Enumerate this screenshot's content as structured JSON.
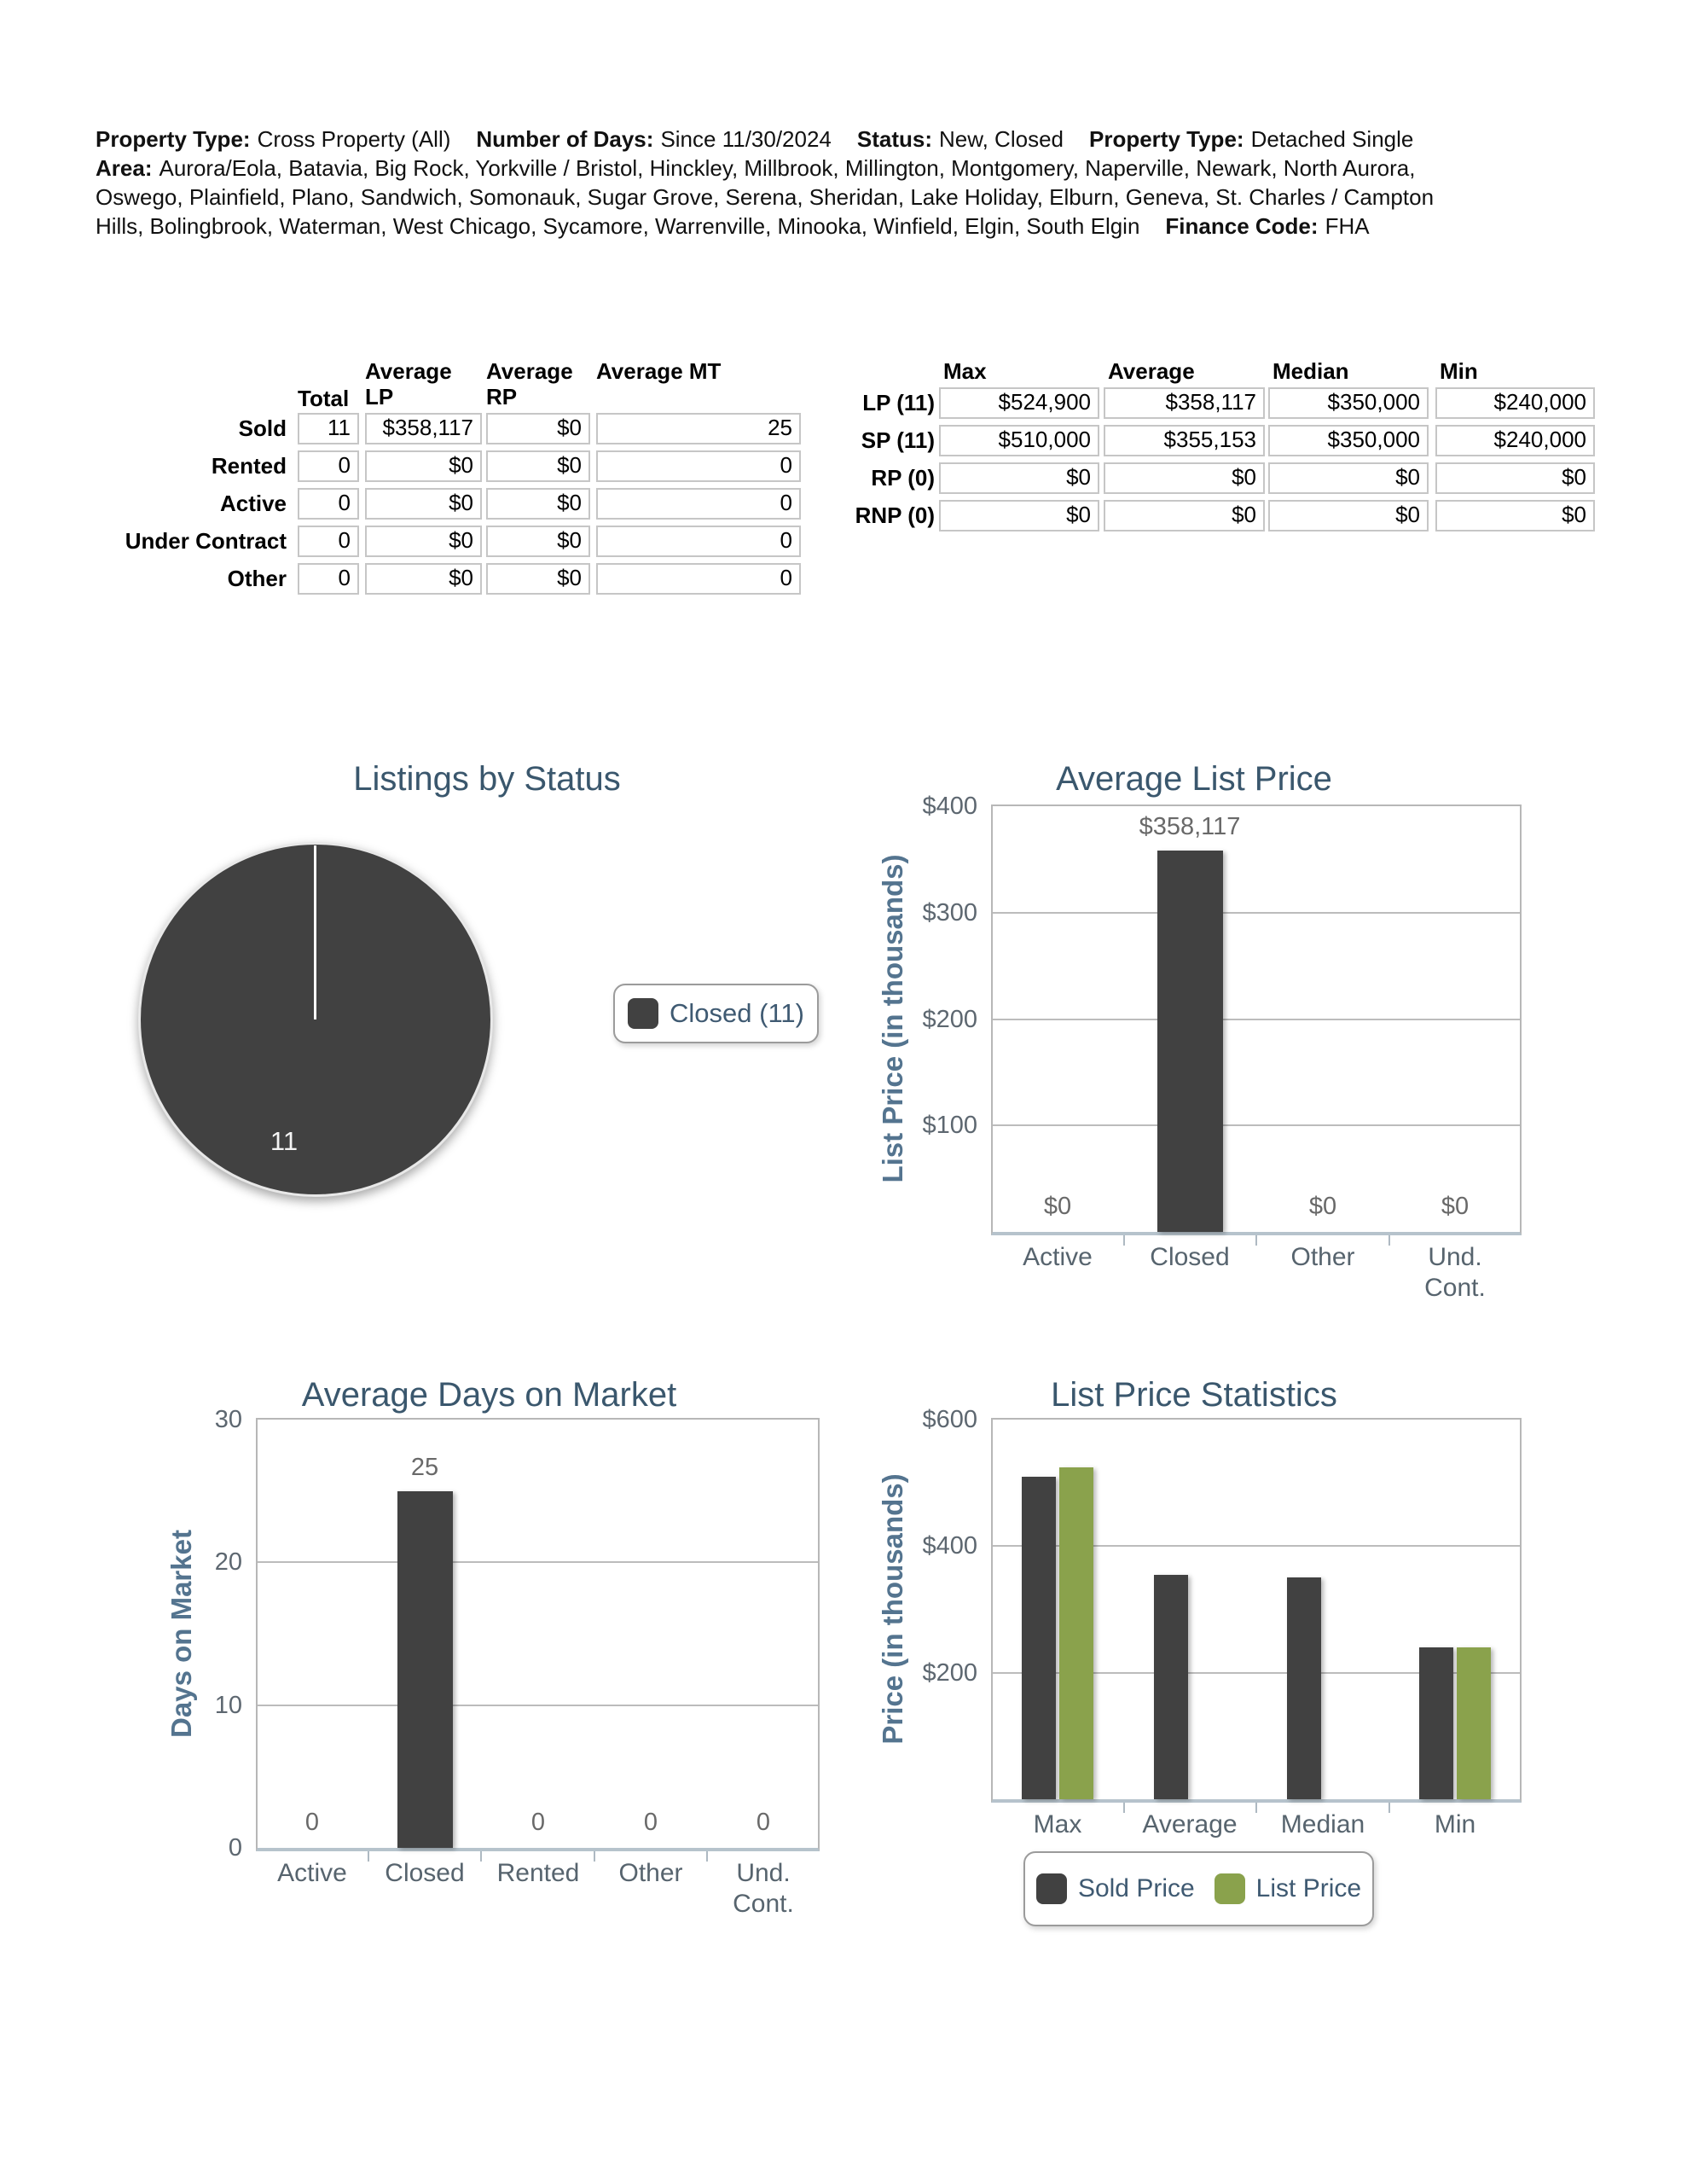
{
  "colors": {
    "charcoal": "#414141",
    "green": "#8aa24c",
    "title_slate": "#3a576d",
    "axis_label_blue": "#54748f",
    "cell_border": "#c6c6c6",
    "baseline_steel": "#b6c3cc"
  },
  "header": {
    "items_line1": [
      {
        "label": "Property Type:",
        "value": "Cross Property (All)"
      },
      {
        "label": "Number of Days:",
        "value": "Since 11/30/2024"
      },
      {
        "label": "Status:",
        "value": "New, Closed"
      },
      {
        "label": "Property Type:",
        "value": "Detached Single"
      }
    ],
    "area_label": "Area:",
    "area_line1": "Aurora/Eola, Batavia, Big Rock, Yorkville / Bristol, Hinckley, Millbrook, Millington, Montgomery, Naperville, Newark, North Aurora,",
    "area_line2": "Oswego, Plainfield, Plano, Sandwich, Somonauk, Sugar Grove, Serena, Sheridan, Lake Holiday, Elburn, Geneva, St. Charles / Campton",
    "area_line3": "Hills, Bolingbrook, Waterman, West Chicago, Sycamore, Warrenville, Minooka, Winfield, Elgin, South Elgin",
    "finance_label": "Finance Code:",
    "finance_value": "FHA"
  },
  "status_table": {
    "col_headers": [
      "Total",
      "Average LP",
      "Average RP",
      "Average MT"
    ],
    "rows": [
      {
        "label": "Sold",
        "cells": [
          "11",
          "$358,117",
          "$0",
          "25"
        ]
      },
      {
        "label": "Rented",
        "cells": [
          "0",
          "$0",
          "$0",
          "0"
        ]
      },
      {
        "label": "Active",
        "cells": [
          "0",
          "$0",
          "$0",
          "0"
        ]
      },
      {
        "label": "Under Contract",
        "cells": [
          "0",
          "$0",
          "$0",
          "0"
        ]
      },
      {
        "label": "Other",
        "cells": [
          "0",
          "$0",
          "$0",
          "0"
        ]
      }
    ]
  },
  "price_table": {
    "col_headers": [
      "Max",
      "Average",
      "Median",
      "Min"
    ],
    "rows": [
      {
        "label": "LP (11)",
        "cells": [
          "$524,900",
          "$358,117",
          "$350,000",
          "$240,000"
        ]
      },
      {
        "label": "SP (11)",
        "cells": [
          "$510,000",
          "$355,153",
          "$350,000",
          "$240,000"
        ]
      },
      {
        "label": "RP (0)",
        "cells": [
          "$0",
          "$0",
          "$0",
          "$0"
        ]
      },
      {
        "label": "RNP (0)",
        "cells": [
          "$0",
          "$0",
          "$0",
          "$0"
        ]
      }
    ]
  },
  "chart_data": [
    {
      "type": "pie",
      "title": "Listings by Status",
      "slices": [
        {
          "label": "Closed",
          "value": 11,
          "color": "#414141",
          "data_label": "11"
        }
      ],
      "legend": {
        "position": "right",
        "entries": [
          {
            "label": "Closed (11)",
            "color": "#414141"
          }
        ]
      }
    },
    {
      "type": "bar",
      "title": "Average List Price",
      "xlabel": "",
      "ylabel": "List Price (in thousands)",
      "categories": [
        "Active",
        "Closed",
        "Other",
        "Und. Cont."
      ],
      "values": [
        0,
        358.117,
        0,
        0
      ],
      "value_labels": [
        "$0",
        "$358,117",
        "$0",
        "$0"
      ],
      "ylim": [
        0,
        400
      ],
      "yticks": [
        {
          "value": 400,
          "label": "$400"
        },
        {
          "value": 300,
          "label": "$300"
        },
        {
          "value": 200,
          "label": "$200"
        },
        {
          "value": 100,
          "label": "$100"
        }
      ],
      "grid": true,
      "bar_color": "#414141"
    },
    {
      "type": "bar",
      "title": "Average Days on Market",
      "xlabel": "",
      "ylabel": "Days on Market",
      "categories": [
        "Active",
        "Closed",
        "Rented",
        "Other",
        "Und. Cont."
      ],
      "values": [
        0,
        25,
        0,
        0,
        0
      ],
      "value_labels": [
        "0",
        "25",
        "0",
        "0",
        "0"
      ],
      "ylim": [
        0,
        30
      ],
      "yticks": [
        {
          "value": 30,
          "label": "30"
        },
        {
          "value": 20,
          "label": "20"
        },
        {
          "value": 10,
          "label": "10"
        },
        {
          "value": 0,
          "label": "0"
        }
      ],
      "grid": true,
      "bar_color": "#414141"
    },
    {
      "type": "bar",
      "title": "List Price Statistics",
      "xlabel": "",
      "ylabel": "Price (in thousands)",
      "categories": [
        "Max",
        "Average",
        "Median",
        "Min"
      ],
      "series": [
        {
          "name": "Sold Price",
          "color": "#414141",
          "values": [
            510,
            355.153,
            350,
            240
          ]
        },
        {
          "name": "List Price",
          "color": "#8aa24c",
          "values": [
            524.9,
            null,
            null,
            240
          ]
        }
      ],
      "ylim": [
        0,
        600
      ],
      "yticks": [
        {
          "value": 600,
          "label": "$600"
        },
        {
          "value": 400,
          "label": "$400"
        },
        {
          "value": 200,
          "label": "$200"
        }
      ],
      "grid": true,
      "legend": {
        "position": "bottom",
        "entries": [
          {
            "label": "Sold Price",
            "color": "#414141"
          },
          {
            "label": "List Price",
            "color": "#8aa24c"
          }
        ]
      }
    }
  ]
}
